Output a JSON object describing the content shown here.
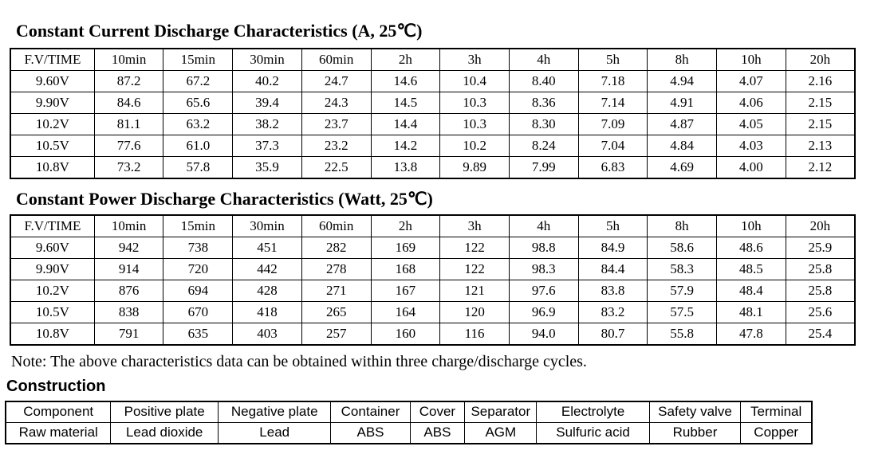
{
  "colors": {
    "text": "#000000",
    "background": "#ffffff",
    "border": "#000000"
  },
  "current": {
    "title": "Constant Current Discharge Characteristics (A, 25℃)",
    "headers": [
      "F.V/TIME",
      "10min",
      "15min",
      "30min",
      "60min",
      "2h",
      "3h",
      "4h",
      "5h",
      "8h",
      "10h",
      "20h"
    ],
    "rows": [
      [
        "9.60V",
        "87.2",
        "67.2",
        "40.2",
        "24.7",
        "14.6",
        "10.4",
        "8.40",
        "7.18",
        "4.94",
        "4.07",
        "2.16"
      ],
      [
        "9.90V",
        "84.6",
        "65.6",
        "39.4",
        "24.3",
        "14.5",
        "10.3",
        "8.36",
        "7.14",
        "4.91",
        "4.06",
        "2.15"
      ],
      [
        "10.2V",
        "81.1",
        "63.2",
        "38.2",
        "23.7",
        "14.4",
        "10.3",
        "8.30",
        "7.09",
        "4.87",
        "4.05",
        "2.15"
      ],
      [
        "10.5V",
        "77.6",
        "61.0",
        "37.3",
        "23.2",
        "14.2",
        "10.2",
        "8.24",
        "7.04",
        "4.84",
        "4.03",
        "2.13"
      ],
      [
        "10.8V",
        "73.2",
        "57.8",
        "35.9",
        "22.5",
        "13.8",
        "9.89",
        "7.99",
        "6.83",
        "4.69",
        "4.00",
        "2.12"
      ]
    ]
  },
  "power": {
    "title": "Constant Power Discharge Characteristics (Watt, 25℃)",
    "headers": [
      "F.V/TIME",
      "10min",
      "15min",
      "30min",
      "60min",
      "2h",
      "3h",
      "4h",
      "5h",
      "8h",
      "10h",
      "20h"
    ],
    "rows": [
      [
        "9.60V",
        "942",
        "738",
        "451",
        "282",
        "169",
        "122",
        "98.8",
        "84.9",
        "58.6",
        "48.6",
        "25.9"
      ],
      [
        "9.90V",
        "914",
        "720",
        "442",
        "278",
        "168",
        "122",
        "98.3",
        "84.4",
        "58.3",
        "48.5",
        "25.8"
      ],
      [
        "10.2V",
        "876",
        "694",
        "428",
        "271",
        "167",
        "121",
        "97.6",
        "83.8",
        "57.9",
        "48.4",
        "25.8"
      ],
      [
        "10.5V",
        "838",
        "670",
        "418",
        "265",
        "164",
        "120",
        "96.9",
        "83.2",
        "57.5",
        "48.1",
        "25.6"
      ],
      [
        "10.8V",
        "791",
        "635",
        "403",
        "257",
        "160",
        "116",
        "94.0",
        "80.7",
        "55.8",
        "47.8",
        "25.4"
      ]
    ]
  },
  "note": "Note: The above characteristics data can be obtained within three charge/discharge cycles.",
  "construction": {
    "heading": "Construction",
    "rows": [
      [
        "Component",
        "Positive plate",
        "Negative plate",
        "Container",
        "Cover",
        "Separator",
        "Electrolyte",
        "Safety valve",
        "Terminal"
      ],
      [
        "Raw material",
        "Lead dioxide",
        "Lead",
        "ABS",
        "ABS",
        "AGM",
        "Sulfuric acid",
        "Rubber",
        "Copper"
      ]
    ]
  }
}
